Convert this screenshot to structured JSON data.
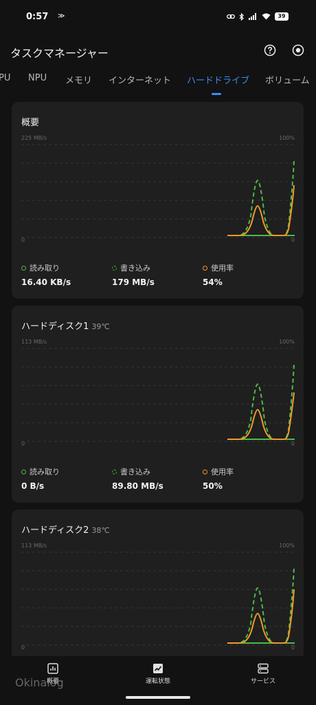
{
  "status_bar": {
    "time": "0:57",
    "left_icon": "≫",
    "icons": [
      "link-icon",
      "bluetooth-icon",
      "signal-icon",
      "wifi-icon"
    ],
    "battery": "39"
  },
  "app": {
    "title": "タスクマネージャー"
  },
  "tabs": [
    {
      "label": "PU"
    },
    {
      "label": "NPU"
    },
    {
      "label": "メモリ"
    },
    {
      "label": "インターネット"
    },
    {
      "label": "ハードドライブ"
    },
    {
      "label": "ボリューム"
    }
  ],
  "active_tab": "ハードドライブ",
  "colors": {
    "accent": "#3d8cf5",
    "read": "#4cbb4a",
    "write": "#4cbb4a",
    "usage": "#f29a28"
  },
  "cards": [
    {
      "title": "概要",
      "temp": "",
      "left_max": "225 MB/s",
      "right_max": "100%",
      "left_min": "0",
      "right_min": "0",
      "metrics": [
        {
          "label": "読み取り",
          "value": "16.40 KB/s"
        },
        {
          "label": "書き込み",
          "value": "179 MB/s"
        },
        {
          "label": "使用率",
          "value": "54%"
        }
      ]
    },
    {
      "title": "ハードディスク1",
      "temp": "39℃",
      "left_max": "113 MB/s",
      "right_max": "100%",
      "left_min": "0",
      "right_min": "0",
      "metrics": [
        {
          "label": "読み取り",
          "value": "0 B/s"
        },
        {
          "label": "書き込み",
          "value": "89.80 MB/s"
        },
        {
          "label": "使用率",
          "value": "50%"
        }
      ]
    },
    {
      "title": "ハードディスク2",
      "temp": "38℃",
      "left_max": "113 MB/s",
      "right_max": "100%",
      "left_min": "0",
      "right_min": "0",
      "metrics": []
    }
  ],
  "bottom_nav": [
    {
      "label": "概要",
      "icon": "bar-chart-icon"
    },
    {
      "label": "運転状態",
      "icon": "activity-icon"
    },
    {
      "label": "サービス",
      "icon": "server-icon"
    }
  ],
  "watermark": "Okinalog"
}
